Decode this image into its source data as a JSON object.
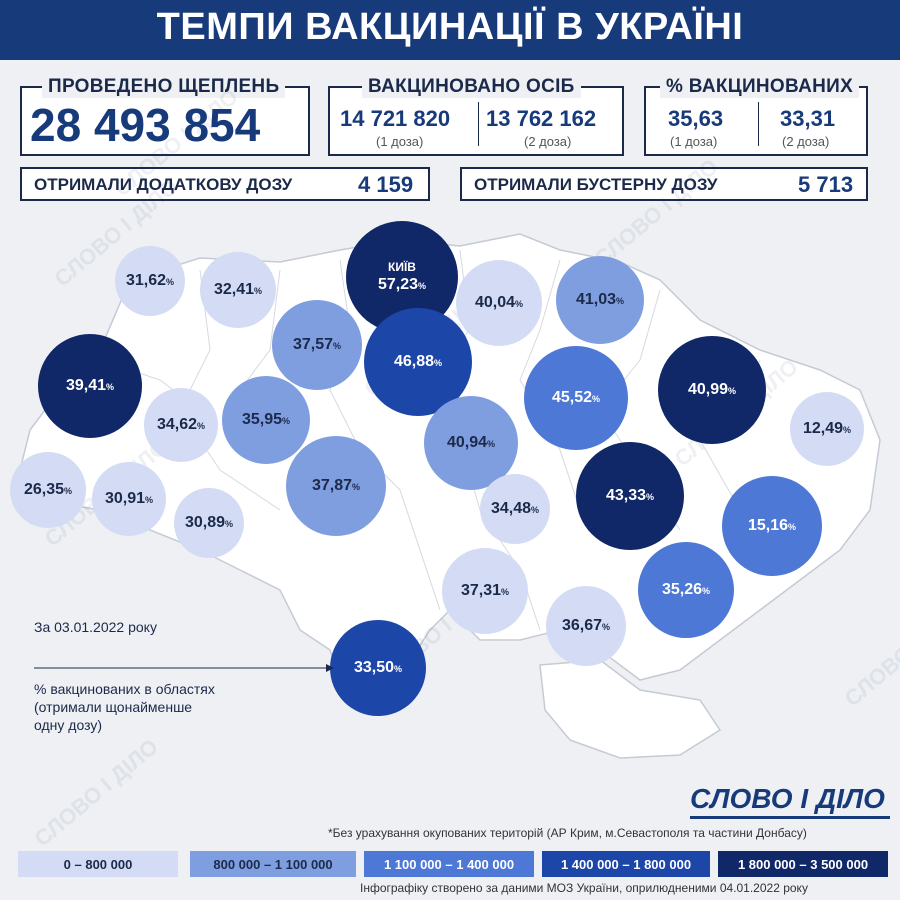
{
  "title": "ТЕМПИ ВАКЦИНАЦІЇ В УКРАЇНІ",
  "stats": {
    "total": {
      "label": "ПРОВЕДЕНО ЩЕПЛЕНЬ",
      "value": "28 493 854"
    },
    "persons": {
      "label": "ВАКЦИНОВАНО ОСІБ",
      "dose1_value": "14 721 820",
      "dose1_label": "(1 доза)",
      "dose2_value": "13 762 162",
      "dose2_label": "(2 доза)"
    },
    "percent": {
      "label": "% ВАКЦИНОВАНИХ",
      "dose1_value": "35,63",
      "dose1_label": "(1 доза)",
      "dose2_value": "33,31",
      "dose2_label": "(2 доза)"
    },
    "additional": {
      "label": "ОТРИМАЛИ ДОДАТКОВУ ДОЗУ",
      "value": "4 159"
    },
    "booster": {
      "label": "ОТРИМАЛИ БУСТЕРНУ ДОЗУ",
      "value": "5 713"
    }
  },
  "regions": [
    {
      "value": "31,62",
      "unit": "%",
      "tier": 1
    },
    {
      "value": "32,41",
      "unit": "%",
      "tier": 1
    },
    {
      "value": "57,23",
      "unit": "%",
      "tier": 5,
      "name": "КИЇВ"
    },
    {
      "value": "40,04",
      "unit": "%",
      "tier": 1
    },
    {
      "value": "41,03",
      "unit": "%",
      "tier": 2
    },
    {
      "value": "37,57",
      "unit": "%",
      "tier": 2
    },
    {
      "value": "46,88",
      "unit": "%",
      "tier": 4
    },
    {
      "value": "39,41",
      "unit": "%",
      "tier": 5
    },
    {
      "value": "45,52",
      "unit": "%",
      "tier": 3
    },
    {
      "value": "40,99",
      "unit": "%",
      "tier": 5
    },
    {
      "value": "34,62",
      "unit": "%",
      "tier": 1
    },
    {
      "value": "35,95",
      "unit": "%",
      "tier": 2
    },
    {
      "value": "40,94",
      "unit": "%",
      "tier": 2
    },
    {
      "value": "12,49",
      "unit": "%",
      "tier": 1
    },
    {
      "value": "26,35",
      "unit": "%",
      "tier": 1
    },
    {
      "value": "30,91",
      "unit": "%",
      "tier": 1
    },
    {
      "value": "37,87",
      "unit": "%",
      "tier": 2
    },
    {
      "value": "43,33",
      "unit": "%",
      "tier": 5
    },
    {
      "value": "30,89",
      "unit": "%",
      "tier": 1
    },
    {
      "value": "34,48",
      "unit": "%",
      "tier": 1
    },
    {
      "value": "15,16",
      "unit": "%",
      "tier": 3
    },
    {
      "value": "37,31",
      "unit": "%",
      "tier": 1
    },
    {
      "value": "35,26",
      "unit": "%",
      "tier": 3
    },
    {
      "value": "36,67",
      "unit": "%",
      "tier": 1
    },
    {
      "value": "33,50",
      "unit": "%",
      "tier": 4
    }
  ],
  "date_note": "За 03.01.2022 року",
  "explanation": {
    "line1": "% вакцинованих в областях",
    "line2": "(отримали щонайменше",
    "line3": "одну дозу)"
  },
  "logo_text": "СЛОВО І ДІЛО",
  "watermark_text": "СЛОВО І ДІЛО",
  "footnote": "*Без урахування окупованих територій (АР Крим, м.Севастополя та частини Донбасу)",
  "legend": [
    {
      "label": "0 – 800 000",
      "color": "#d3dcf4",
      "text_color": "#1b2a4a"
    },
    {
      "label": "800 000 – 1 100 000",
      "color": "#7f9ee0",
      "text_color": "#1b2a4a"
    },
    {
      "label": "1 100 000 – 1 400 000",
      "color": "#4d78d6",
      "text_color": "#ffffff"
    },
    {
      "label": "1 400 000 – 1 800 000",
      "color": "#1c46a8",
      "text_color": "#ffffff"
    },
    {
      "label": "1 800 000 – 3 500 000",
      "color": "#102768",
      "text_color": "#ffffff"
    }
  ],
  "source": "Інфографіку створено за даними МОЗ України, оприлюдненими 04.01.2022 року",
  "colors": {
    "header": "#173a7a",
    "accent": "#173a7a",
    "background": "#eef0f4"
  }
}
